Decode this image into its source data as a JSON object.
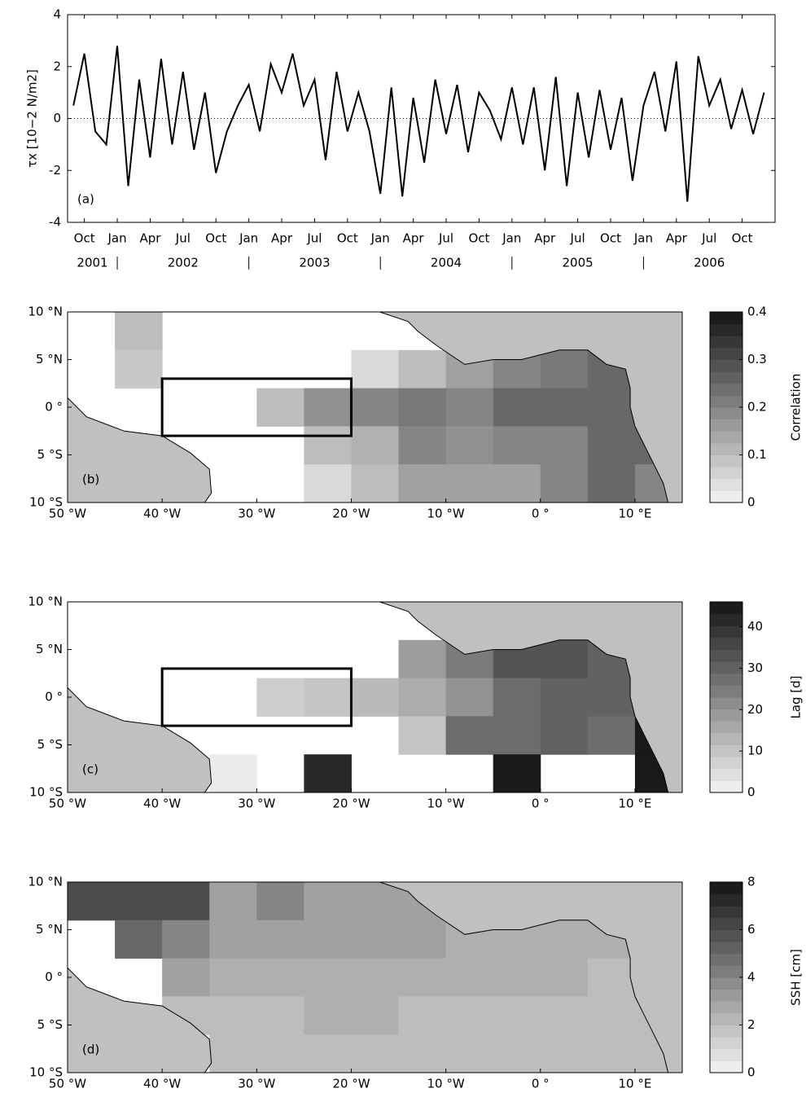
{
  "chart_data": [
    {
      "type": "line",
      "panel_label": "(a)",
      "y_label": "τx [10−2 N/m2]",
      "color": "#000000",
      "x": [
        "2001-09",
        "2001-10",
        "2001-11",
        "2001-12",
        "2002-01",
        "2002-02",
        "2002-03",
        "2002-04",
        "2002-05",
        "2002-06",
        "2002-07",
        "2002-08",
        "2002-09",
        "2002-10",
        "2002-11",
        "2002-12",
        "2003-01",
        "2003-02",
        "2003-03",
        "2003-04",
        "2003-05",
        "2003-06",
        "2003-07",
        "2003-08",
        "2003-09",
        "2003-10",
        "2003-11",
        "2003-12",
        "2004-01",
        "2004-02",
        "2004-03",
        "2004-04",
        "2004-05",
        "2004-06",
        "2004-07",
        "2004-08",
        "2004-09",
        "2004-10",
        "2004-11",
        "2004-12",
        "2005-01",
        "2005-02",
        "2005-03",
        "2005-04",
        "2005-05",
        "2005-06",
        "2005-07",
        "2005-08",
        "2005-09",
        "2005-10",
        "2005-11",
        "2005-12",
        "2006-01",
        "2006-02",
        "2006-03",
        "2006-04",
        "2006-05",
        "2006-06",
        "2006-07",
        "2006-08",
        "2006-09",
        "2006-10",
        "2006-11",
        "2006-12"
      ],
      "values": [
        0.5,
        2.5,
        -0.5,
        -1.0,
        2.8,
        -2.6,
        1.5,
        -1.5,
        2.3,
        -1.0,
        1.8,
        -1.2,
        1.0,
        -2.1,
        -0.5,
        0.5,
        1.3,
        -0.5,
        2.1,
        1.0,
        2.5,
        0.5,
        1.5,
        -1.6,
        1.8,
        -0.5,
        1.0,
        -0.5,
        -2.9,
        1.2,
        -3.0,
        0.8,
        -1.7,
        1.5,
        -0.6,
        1.3,
        -1.3,
        1.0,
        0.3,
        -0.8,
        1.2,
        -1.0,
        1.2,
        -2.0,
        1.6,
        -2.6,
        1.0,
        -1.5,
        1.1,
        -1.2,
        0.8,
        -2.4,
        0.5,
        1.8,
        -0.5,
        2.2,
        -3.2,
        2.4,
        0.5,
        1.5,
        -0.4,
        1.1,
        -0.6,
        1.0
      ],
      "xlim": [
        "2001-08-15",
        "2006-12-31"
      ],
      "xticks": [
        {
          "value": "2001-10",
          "label": "Oct"
        },
        {
          "value": "2002-01",
          "label": "Jan"
        },
        {
          "value": "2002-04",
          "label": "Apr"
        },
        {
          "value": "2002-07",
          "label": "Jul"
        },
        {
          "value": "2002-10",
          "label": "Oct"
        },
        {
          "value": "2003-01",
          "label": "Jan"
        },
        {
          "value": "2003-04",
          "label": "Apr"
        },
        {
          "value": "2003-07",
          "label": "Jul"
        },
        {
          "value": "2003-10",
          "label": "Oct"
        },
        {
          "value": "2004-01",
          "label": "Jan"
        },
        {
          "value": "2004-04",
          "label": "Apr"
        },
        {
          "value": "2004-07",
          "label": "Jul"
        },
        {
          "value": "2004-10",
          "label": "Oct"
        },
        {
          "value": "2005-01",
          "label": "Jan"
        },
        {
          "value": "2005-04",
          "label": "Apr"
        },
        {
          "value": "2005-07",
          "label": "Jul"
        },
        {
          "value": "2005-10",
          "label": "Oct"
        },
        {
          "value": "2006-01",
          "label": "Jan"
        },
        {
          "value": "2006-04",
          "label": "Apr"
        },
        {
          "value": "2006-07",
          "label": "Jul"
        },
        {
          "value": "2006-10",
          "label": "Oct"
        }
      ],
      "year_labels": [
        "2001",
        "2002",
        "2003",
        "2004",
        "2005",
        "2006"
      ],
      "ylim": [
        -4,
        4
      ],
      "yticks": [
        -4,
        -2,
        0,
        2,
        4
      ]
    },
    {
      "type": "heatmap",
      "panel_label": "(b)",
      "colorbar_label": "Correlation",
      "lons": [
        -47.5,
        -42.5,
        -37.5,
        -32.5,
        -27.5,
        -22.5,
        -17.5,
        -12.5,
        -7.5,
        -2.5,
        2.5,
        7.5,
        12.5
      ],
      "lats": [
        8,
        4,
        0,
        -4,
        -8
      ],
      "values": [
        [
          null,
          0.1,
          null,
          null,
          null,
          null,
          null,
          null,
          0.05,
          0.05,
          0.05,
          null,
          null
        ],
        [
          null,
          0.08,
          null,
          null,
          null,
          null,
          0.05,
          0.1,
          0.15,
          0.2,
          0.22,
          0.25,
          0.2
        ],
        [
          null,
          null,
          null,
          null,
          0.1,
          0.18,
          0.2,
          0.22,
          0.2,
          0.25,
          0.25,
          0.25,
          0.2
        ],
        [
          null,
          null,
          null,
          null,
          null,
          0.1,
          0.12,
          0.2,
          0.18,
          0.2,
          0.2,
          0.25,
          0.25
        ],
        [
          null,
          null,
          null,
          null,
          null,
          0.05,
          0.1,
          0.15,
          0.15,
          0.15,
          0.2,
          0.25,
          0.2
        ]
      ],
      "box": {
        "lon": [
          -40,
          -20
        ],
        "lat": [
          -3,
          3
        ]
      },
      "xlim": [
        -50,
        15
      ],
      "ylim": [
        -10,
        10
      ],
      "xticks": [
        {
          "value": -50,
          "label": "50 °W"
        },
        {
          "value": -40,
          "label": "40 °W"
        },
        {
          "value": -30,
          "label": "30 °W"
        },
        {
          "value": -20,
          "label": "20 °W"
        },
        {
          "value": -10,
          "label": "10 °W"
        },
        {
          "value": 0,
          "label": "0 °"
        },
        {
          "value": 10,
          "label": "10 °E"
        }
      ],
      "yticks": [
        {
          "value": -10,
          "label": "10 °S"
        },
        {
          "value": -5,
          "label": "5 °S"
        },
        {
          "value": 0,
          "label": "0 °"
        },
        {
          "value": 5,
          "label": "5 °N"
        },
        {
          "value": 10,
          "label": "10 °N"
        }
      ],
      "clim": [
        0,
        0.4
      ],
      "cticks": [
        0,
        0.1,
        0.2,
        0.3,
        0.4
      ]
    },
    {
      "type": "heatmap",
      "panel_label": "(c)",
      "colorbar_label": "Lag [d]",
      "lons": [
        -47.5,
        -42.5,
        -37.5,
        -32.5,
        -27.5,
        -22.5,
        -17.5,
        -12.5,
        -7.5,
        -2.5,
        2.5,
        7.5,
        12.5
      ],
      "lats": [
        8,
        4,
        0,
        -4,
        -8
      ],
      "values": [
        [
          null,
          null,
          null,
          null,
          null,
          null,
          null,
          null,
          null,
          null,
          null,
          null,
          null
        ],
        [
          null,
          null,
          null,
          null,
          null,
          null,
          null,
          18,
          25,
          33,
          33,
          30,
          45
        ],
        [
          null,
          null,
          null,
          null,
          8,
          10,
          12,
          15,
          20,
          28,
          30,
          30,
          45
        ],
        [
          null,
          null,
          null,
          null,
          null,
          null,
          null,
          10,
          28,
          28,
          30,
          28,
          45
        ],
        [
          null,
          null,
          null,
          2,
          null,
          42,
          null,
          null,
          null,
          45,
          null,
          null,
          45
        ]
      ],
      "box": {
        "lon": [
          -40,
          -20
        ],
        "lat": [
          -3,
          3
        ]
      },
      "xlim": [
        -50,
        15
      ],
      "ylim": [
        -10,
        10
      ],
      "xticks": [
        {
          "value": -50,
          "label": "50 °W"
        },
        {
          "value": -40,
          "label": "40 °W"
        },
        {
          "value": -30,
          "label": "30 °W"
        },
        {
          "value": -20,
          "label": "20 °W"
        },
        {
          "value": -10,
          "label": "10 °W"
        },
        {
          "value": 0,
          "label": "0 °"
        },
        {
          "value": 10,
          "label": "10 °E"
        }
      ],
      "yticks": [
        {
          "value": -10,
          "label": "10 °S"
        },
        {
          "value": -5,
          "label": "5 °S"
        },
        {
          "value": 0,
          "label": "0 °"
        },
        {
          "value": 5,
          "label": "5 °N"
        },
        {
          "value": 10,
          "label": "10 °N"
        }
      ],
      "clim": [
        0,
        46
      ],
      "cticks": [
        0,
        10,
        20,
        30,
        40
      ]
    },
    {
      "type": "heatmap",
      "panel_label": "(d)",
      "colorbar_label": "SSH [cm]",
      "lons": [
        -47.5,
        -42.5,
        -37.5,
        -32.5,
        -27.5,
        -22.5,
        -17.5,
        -12.5,
        -7.5,
        -2.5,
        2.5,
        7.5,
        12.5
      ],
      "lats": [
        8,
        4,
        0,
        -4,
        -8
      ],
      "values": [
        [
          6,
          6,
          6,
          3,
          4,
          3,
          3,
          3,
          null,
          null,
          null,
          null,
          null
        ],
        [
          null,
          5,
          4,
          3,
          3,
          3,
          3,
          3,
          2.5,
          2.5,
          2.5,
          2.5,
          2.5
        ],
        [
          null,
          null,
          3,
          2.5,
          2.5,
          2.5,
          2.5,
          2.5,
          2.5,
          2.5,
          2.5,
          2,
          2
        ],
        [
          null,
          null,
          2,
          2,
          2,
          2.5,
          2.5,
          2,
          2,
          2,
          2,
          2,
          2
        ],
        [
          null,
          null,
          null,
          2,
          2,
          2,
          2,
          2,
          2,
          2,
          2,
          2,
          2
        ]
      ],
      "xlim": [
        -50,
        15
      ],
      "ylim": [
        -10,
        10
      ],
      "xticks": [
        {
          "value": -50,
          "label": "50 °W"
        },
        {
          "value": -40,
          "label": "40 °W"
        },
        {
          "value": -30,
          "label": "30 °W"
        },
        {
          "value": -20,
          "label": "20 °W"
        },
        {
          "value": -10,
          "label": "10 °W"
        },
        {
          "value": 0,
          "label": "0 °"
        },
        {
          "value": 10,
          "label": "10 °E"
        }
      ],
      "yticks": [
        {
          "value": -10,
          "label": "10 °S"
        },
        {
          "value": -5,
          "label": "5 °S"
        },
        {
          "value": 0,
          "label": "0 °"
        },
        {
          "value": 5,
          "label": "5 °N"
        },
        {
          "value": 10,
          "label": "10 °N"
        }
      ],
      "clim": [
        0,
        8
      ],
      "cticks": [
        0,
        2,
        4,
        6,
        8
      ]
    }
  ]
}
